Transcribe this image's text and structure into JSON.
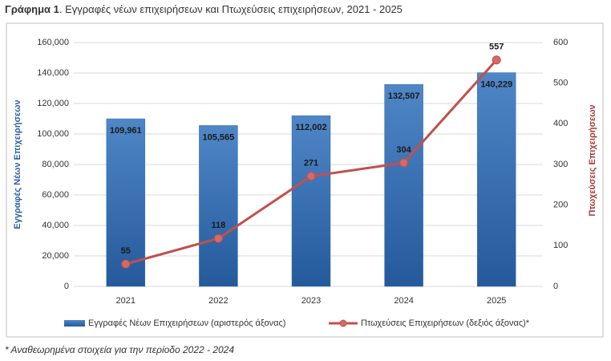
{
  "chart_data": {
    "type": "bar-line",
    "title": [
      "Γράφημα 1",
      ". Εγγραφές νέων επιχειρήσεων και Πτωχεύσεις επιχειρήσεων, 2021 - 2025"
    ],
    "ylabel": "Εγγραφές Νέων Επιχειρήσεων",
    "y2label": "Πτωχεύσεις Επιχειρήσεων",
    "footnote": "* Αναθεωρημένα στοιχεία για την περίοδο 2022 - 2024",
    "categories": [
      "2021",
      "2022",
      "2023",
      "2024",
      "2025"
    ],
    "series": [
      {
        "name": "Εγγραφές Νέων Επιχειρήσεων (αριστερός άξονας)",
        "type": "bar",
        "color": "#3a6fb5",
        "values": [
          109961,
          105565,
          112002,
          132507,
          140229
        ],
        "value_labels": [
          "109,961",
          "105,565",
          "112,002",
          "132,507",
          "140,229"
        ]
      },
      {
        "name": "Πτωχεύσεις Επιχειρήσεων (δεξιός άξονας)*",
        "type": "line",
        "axis": "y2",
        "color": "#c0504d",
        "values": [
          55,
          118,
          271,
          304,
          557
        ]
      }
    ],
    "ylim": [
      0,
      160000
    ],
    "yticks": [
      0,
      {
        "value": 20000,
        "label": "20,000"
      },
      {
        "value": 40000,
        "label": "40,000"
      },
      {
        "value": 60000,
        "label": "60,000"
      },
      {
        "value": 80000,
        "label": "80,000"
      },
      {
        "value": 100000,
        "label": "100,000"
      },
      {
        "value": 120000,
        "label": "120,000"
      },
      {
        "value": 140000,
        "label": "140,000"
      },
      {
        "value": 160000,
        "label": "160,000"
      }
    ],
    "y2lim": [
      0,
      600
    ],
    "y2ticks": [
      0,
      100,
      200,
      300,
      400,
      500,
      600
    ],
    "grid": true,
    "legend": "bottom"
  }
}
